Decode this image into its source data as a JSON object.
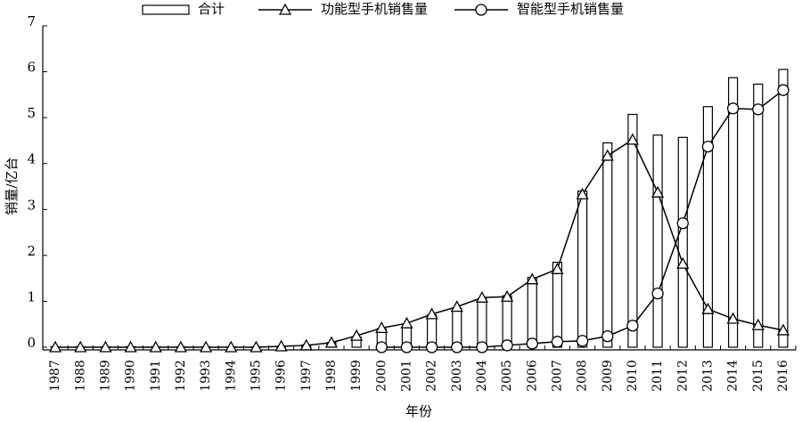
{
  "chart_data": {
    "type": "bar",
    "x_label": "年份",
    "y_label": "销量/亿台",
    "categories": [
      "1987",
      "1988",
      "1989",
      "1990",
      "1991",
      "1992",
      "1993",
      "1994",
      "1995",
      "1996",
      "1997",
      "1998",
      "1999",
      "2000",
      "2001",
      "2002",
      "2003",
      "2004",
      "2005",
      "2006",
      "2007",
      "2008",
      "2009",
      "2010",
      "2011",
      "2012",
      "2013",
      "2014",
      "2015",
      "2016"
    ],
    "series": [
      {
        "name": "合计",
        "type": "bar",
        "color": "#000000",
        "values": [
          0.01,
          0.01,
          0.01,
          0.01,
          0.01,
          0.01,
          0.01,
          0.01,
          0.01,
          0.02,
          0.05,
          0.1,
          0.22,
          0.4,
          0.45,
          0.7,
          0.85,
          1.05,
          1.12,
          1.52,
          1.85,
          3.4,
          4.45,
          5.07,
          4.62,
          4.57,
          5.24,
          5.87,
          5.73,
          6.05
        ]
      },
      {
        "name": "功能型手机销售量",
        "type": "line",
        "marker": "triangle",
        "color": "#000000",
        "values": [
          0,
          0,
          0,
          0,
          0,
          0,
          0,
          0,
          0,
          0.02,
          0.04,
          0.1,
          0.25,
          0.42,
          0.52,
          0.72,
          0.88,
          1.08,
          1.1,
          1.48,
          1.7,
          3.33,
          4.17,
          4.52,
          3.37,
          1.82,
          0.83,
          0.62,
          0.48,
          0.37
        ]
      },
      {
        "name": "智能型手机销售量",
        "type": "line",
        "marker": "circle",
        "color": "#000000",
        "values": [
          null,
          null,
          null,
          null,
          null,
          null,
          null,
          null,
          null,
          null,
          null,
          null,
          null,
          0,
          0,
          0,
          0,
          0,
          0.04,
          0.08,
          0.12,
          0.14,
          0.24,
          0.47,
          1.17,
          2.7,
          4.37,
          5.2,
          5.18,
          5.6
        ]
      }
    ],
    "ylim": [
      0,
      7
    ],
    "yticks": [
      0,
      1,
      2,
      3,
      4,
      5,
      6,
      7
    ],
    "grid": false,
    "legend": "top"
  }
}
